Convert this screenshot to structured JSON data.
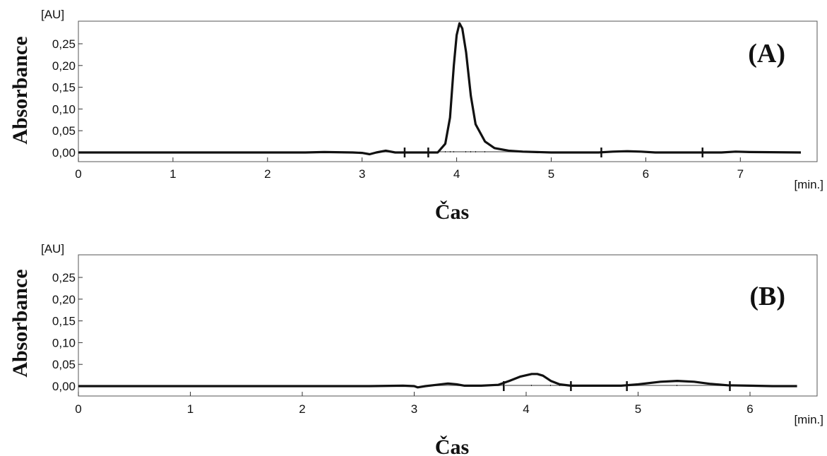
{
  "chart_data": [
    {
      "type": "line",
      "panel_label": "(A)",
      "xlabel": "Čas",
      "ylabel": "Absorbance",
      "x_unit": "[min.]",
      "y_unit": "[AU]",
      "xlim": [
        0,
        7.75
      ],
      "ylim": [
        -0.02,
        0.31
      ],
      "x_ticks": [
        "0",
        "1",
        "2",
        "3",
        "4",
        "5",
        "6",
        "7"
      ],
      "y_ticks": [
        "0,00",
        "0,05",
        "0,10",
        "0,15",
        "0,20",
        "0,25"
      ],
      "y_tick_values": [
        0,
        0.05,
        0.1,
        0.15,
        0.2,
        0.25
      ],
      "grid": false,
      "series": [
        {
          "x": [
            0,
            2.4,
            2.6,
            2.9,
            3.0,
            3.08,
            3.15,
            3.25,
            3.35,
            3.45,
            3.6,
            3.8,
            3.88,
            3.93,
            3.97,
            4.0,
            4.03,
            4.06,
            4.1,
            4.15,
            4.2,
            4.3,
            4.4,
            4.55,
            4.7,
            5.0,
            5.5,
            5.65,
            5.8,
            5.95,
            6.1,
            6.5,
            6.8,
            6.95,
            7.1,
            7.64
          ],
          "y": [
            0,
            0,
            0.001,
            0.0,
            -0.001,
            -0.004,
            0.0,
            0.004,
            0.0,
            0.0,
            0.0,
            0.0,
            0.02,
            0.08,
            0.2,
            0.27,
            0.297,
            0.285,
            0.23,
            0.13,
            0.065,
            0.025,
            0.01,
            0.004,
            0.002,
            0.0,
            0.0,
            0.002,
            0.003,
            0.002,
            0.0,
            0.0,
            0.0,
            0.002,
            0.001,
            0.0
          ]
        }
      ],
      "integration_markers": [
        3.45,
        3.7,
        5.53,
        6.6
      ]
    },
    {
      "type": "line",
      "panel_label": "(B)",
      "xlabel": "Čas",
      "ylabel": "Absorbance",
      "x_unit": "[min.]",
      "y_unit": "[AU]",
      "xlim": [
        0,
        6.5
      ],
      "ylim": [
        -0.02,
        0.31
      ],
      "x_ticks": [
        "0",
        "1",
        "2",
        "3",
        "4",
        "5",
        "6"
      ],
      "y_ticks": [
        "0,00",
        "0,05",
        "0,10",
        "0,15",
        "0,20",
        "0,25"
      ],
      "y_tick_values": [
        0,
        0.05,
        0.1,
        0.15,
        0.2,
        0.25
      ],
      "grid": false,
      "series": [
        {
          "x": [
            0,
            2.6,
            2.9,
            3.0,
            3.03,
            3.1,
            3.2,
            3.3,
            3.38,
            3.45,
            3.6,
            3.75,
            3.85,
            3.95,
            4.05,
            4.1,
            4.15,
            4.22,
            4.3,
            4.4,
            4.6,
            4.85,
            5.0,
            5.2,
            5.35,
            5.5,
            5.65,
            5.8,
            6.0,
            6.2,
            6.42
          ],
          "y": [
            0,
            0,
            0.001,
            0.0,
            -0.003,
            0.0,
            0.003,
            0.006,
            0.004,
            0.001,
            0.001,
            0.003,
            0.012,
            0.022,
            0.028,
            0.028,
            0.024,
            0.012,
            0.004,
            0.001,
            0.001,
            0.001,
            0.004,
            0.01,
            0.012,
            0.01,
            0.005,
            0.002,
            0.001,
            0.0,
            0.0
          ]
        }
      ],
      "integration_markers": [
        3.8,
        4.4,
        4.9,
        5.82
      ]
    }
  ]
}
